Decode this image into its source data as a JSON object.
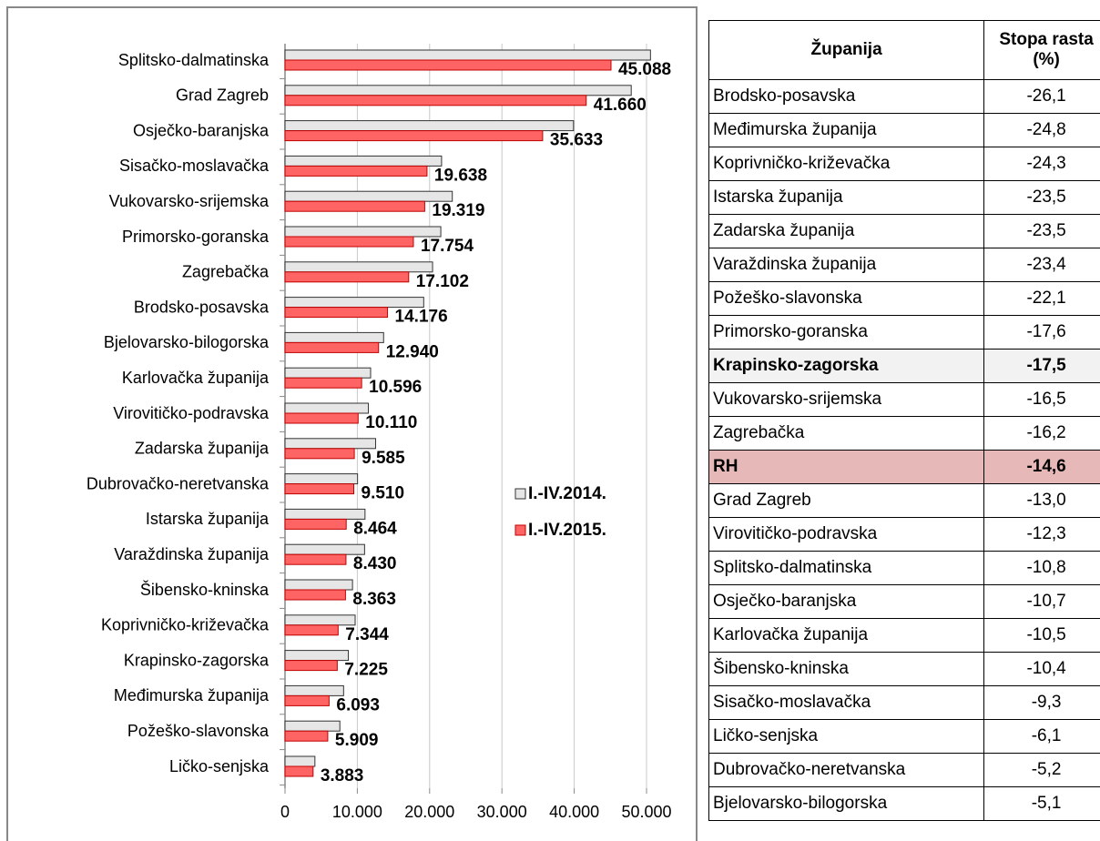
{
  "chart_data": {
    "type": "hbar",
    "categories": [
      "Splitsko-dalmatinska",
      "Grad Zagreb",
      "Osječko-baranjska",
      "Sisačko-moslavačka",
      "Vukovarsko-srijemska",
      "Primorsko-goranska",
      "Zagrebačka",
      "Brodsko-posavska",
      "Bjelovarsko-bilogorska",
      "Karlovačka županija",
      "Virovitičko-podravska",
      "Zadarska županija",
      "Dubrovačko-neretvanska",
      "Istarska županija",
      "Varaždinska županija",
      "Šibensko-kninska",
      "Koprivničko-križevačka",
      "Krapinsko-zagorska",
      "Međimurska županija",
      "Požeško-slavonska",
      "Ličko-senjska"
    ],
    "series": [
      {
        "name": "I.-IV.2014.",
        "color": "#e6e6e6",
        "values": [
          50547,
          47885,
          39903,
          21652,
          23137,
          21546,
          20408,
          19183,
          13635,
          11839,
          11528,
          12529,
          10032,
          11064,
          11005,
          9334,
          9701,
          8758,
          8102,
          7585,
          4135
        ]
      },
      {
        "name": "I.-IV.2015.",
        "color": "#ff6464",
        "values": [
          45088,
          41660,
          35633,
          19638,
          19319,
          17754,
          17102,
          14176,
          12940,
          10596,
          10110,
          9585,
          9510,
          8464,
          8430,
          8363,
          7344,
          7225,
          6093,
          5909,
          3883
        ],
        "value_labels": [
          "45.088",
          "41.660",
          "35.633",
          "19.638",
          "19.319",
          "17.754",
          "17.102",
          "14.176",
          "12.940",
          "10.596",
          "10.110",
          "9.585",
          "9.510",
          "8.464",
          "8.430",
          "8.363",
          "7.344",
          "7.225",
          "6.093",
          "5.909",
          "3.883"
        ]
      }
    ],
    "xlim": [
      0,
      50000
    ],
    "xticks": [
      0,
      {
        "value": 10000,
        "label": "10.000"
      },
      {
        "value": 20000,
        "label": "20.000"
      },
      {
        "value": 30000,
        "label": "30.000"
      },
      {
        "value": 40000,
        "label": "40.000"
      },
      {
        "value": 50000,
        "label": "50.000"
      }
    ],
    "grid": true
  },
  "table": {
    "header": [
      "Županija",
      "Stopa rasta (%)"
    ],
    "rows": [
      [
        "Brodsko-posavska",
        "-26,1"
      ],
      [
        "Međimurska županija",
        "-24,8"
      ],
      [
        "Koprivničko-križevačka",
        "-24,3"
      ],
      [
        "Istarska županija",
        "-23,5"
      ],
      [
        "Zadarska županija",
        "-23,5"
      ],
      [
        "Varaždinska županija",
        "-23,4"
      ],
      [
        "Požeško-slavonska",
        "-22,1"
      ],
      [
        "Primorsko-goranska",
        "-17,6"
      ],
      [
        "Krapinsko-zagorska",
        "-17,5"
      ],
      [
        "Vukovarsko-srijemska",
        "-16,5"
      ],
      [
        "Zagrebačka",
        "-16,2"
      ],
      [
        "RH",
        "-14,6"
      ],
      [
        "Grad Zagreb",
        "-13,0"
      ],
      [
        "Virovitičko-podravska",
        "-12,3"
      ],
      [
        "Splitsko-dalmatinska",
        "-10,8"
      ],
      [
        "Osječko-baranjska",
        "-10,7"
      ],
      [
        "Karlovačka županija",
        "-10,5"
      ],
      [
        "Šibensko-kninska",
        "-10,4"
      ],
      [
        "Sisačko-moslavačka",
        "-9,3"
      ],
      [
        "Ličko-senjska",
        "-6,1"
      ],
      [
        "Dubrovačko-neretvanska",
        "-5,2"
      ],
      [
        "Bjelovarsko-bilogorska",
        "-5,1"
      ]
    ]
  }
}
